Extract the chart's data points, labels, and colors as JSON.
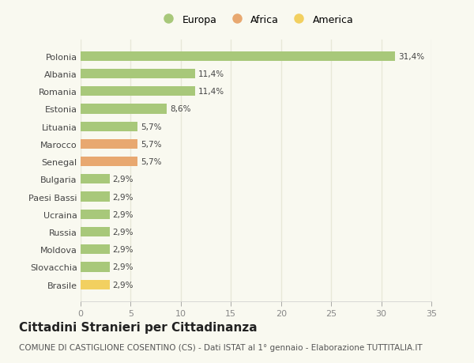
{
  "categories": [
    "Brasile",
    "Slovacchia",
    "Moldova",
    "Russia",
    "Ucraina",
    "Paesi Bassi",
    "Bulgaria",
    "Senegal",
    "Marocco",
    "Lituania",
    "Estonia",
    "Romania",
    "Albania",
    "Polonia"
  ],
  "values": [
    2.9,
    2.9,
    2.9,
    2.9,
    2.9,
    2.9,
    2.9,
    5.7,
    5.7,
    5.7,
    8.6,
    11.4,
    11.4,
    31.4
  ],
  "labels": [
    "2,9%",
    "2,9%",
    "2,9%",
    "2,9%",
    "2,9%",
    "2,9%",
    "2,9%",
    "5,7%",
    "5,7%",
    "5,7%",
    "8,6%",
    "11,4%",
    "11,4%",
    "31,4%"
  ],
  "colors": [
    "#f2d060",
    "#a8c87a",
    "#a8c87a",
    "#a8c87a",
    "#a8c87a",
    "#a8c87a",
    "#a8c87a",
    "#e8a870",
    "#e8a870",
    "#a8c87a",
    "#a8c87a",
    "#a8c87a",
    "#a8c87a",
    "#a8c87a"
  ],
  "legend_labels": [
    "Europa",
    "Africa",
    "America"
  ],
  "legend_colors": [
    "#a8c87a",
    "#e8a870",
    "#f2d060"
  ],
  "xlim": [
    0,
    35
  ],
  "xticks": [
    0,
    5,
    10,
    15,
    20,
    25,
    30,
    35
  ],
  "title": "Cittadini Stranieri per Cittadinanza",
  "subtitle": "COMUNE DI CASTIGLIONE COSENTINO (CS) - Dati ISTAT al 1° gennaio - Elaborazione TUTTITALIA.IT",
  "background_color": "#f9f9f0",
  "grid_color": "#e8e8d8",
  "bar_height": 0.55,
  "label_fontsize": 7.5,
  "ytick_fontsize": 8,
  "xtick_fontsize": 8,
  "title_fontsize": 11,
  "subtitle_fontsize": 7.5,
  "legend_fontsize": 9
}
